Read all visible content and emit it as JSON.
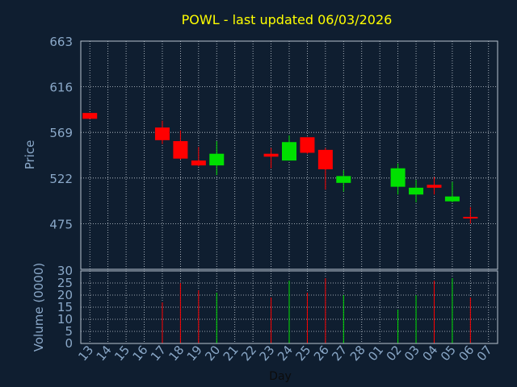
{
  "chart_data": {
    "type": "candlestick",
    "title": "POWL - last updated 06/03/2026",
    "xlabel": "Day",
    "ylabel": "Price",
    "volume_label": "Volume (0000)",
    "price_ylim": [
      428,
      663
    ],
    "price_ticks": [
      "663",
      "616",
      "569",
      "522",
      "475"
    ],
    "volume_ylim": [
      0,
      30
    ],
    "volume_ticks": [
      "30",
      "25",
      "20",
      "15",
      "10",
      "5",
      "0"
    ],
    "grid": true,
    "days": [
      "13",
      "14",
      "15",
      "16",
      "17",
      "18",
      "19",
      "20",
      "21",
      "22",
      "23",
      "24",
      "25",
      "26",
      "27",
      "28",
      "01",
      "02",
      "03",
      "04",
      "05",
      "06",
      "07"
    ],
    "candles": [
      {
        "day": "13",
        "open": 589,
        "close": 583,
        "high": 589,
        "low": 583,
        "volume": null
      },
      {
        "day": "17",
        "open": 574,
        "close": 561,
        "high": 581,
        "low": 557,
        "volume": 17
      },
      {
        "day": "18",
        "open": 560,
        "close": 542,
        "high": 571,
        "low": 541,
        "volume": 25
      },
      {
        "day": "19",
        "open": 540,
        "close": 535,
        "high": 554,
        "low": 534,
        "volume": 22
      },
      {
        "day": "20",
        "open": 535,
        "close": 547,
        "high": 560,
        "low": 525,
        "volume": 21
      },
      {
        "day": "23",
        "open": 547,
        "close": 544,
        "high": 553,
        "low": 532,
        "volume": 19
      },
      {
        "day": "24",
        "open": 540,
        "close": 559,
        "high": 566,
        "low": 540,
        "volume": 26
      },
      {
        "day": "25",
        "open": 564,
        "close": 548,
        "high": 564,
        "low": 547,
        "volume": 21
      },
      {
        "day": "26",
        "open": 551,
        "close": 531,
        "high": 553,
        "low": 510,
        "volume": 27
      },
      {
        "day": "27",
        "open": 517,
        "close": 524,
        "high": 530,
        "low": 508,
        "volume": 20
      },
      {
        "day": "02",
        "open": 513,
        "close": 532,
        "high": 537,
        "low": 505,
        "volume": 14
      },
      {
        "day": "03",
        "open": 505,
        "close": 512,
        "high": 520,
        "low": 497,
        "volume": 20
      },
      {
        "day": "04",
        "open": 515,
        "close": 512,
        "high": 523,
        "low": 505,
        "volume": 26
      },
      {
        "day": "05",
        "open": 498,
        "close": 503,
        "high": 518,
        "low": 497,
        "volume": 27
      },
      {
        "day": "06",
        "open": 482,
        "close": 481,
        "high": 492,
        "low": 475,
        "volume": 19
      }
    ]
  },
  "colors": {
    "background": "#0f1e30",
    "plot_background": "#0f1e30",
    "frame": "#b8c4d0",
    "grid": "#c8d0d8",
    "up": "#00e000",
    "down": "#ff0000",
    "title": "#ffff00",
    "axis_text": "#8aa8c8"
  }
}
